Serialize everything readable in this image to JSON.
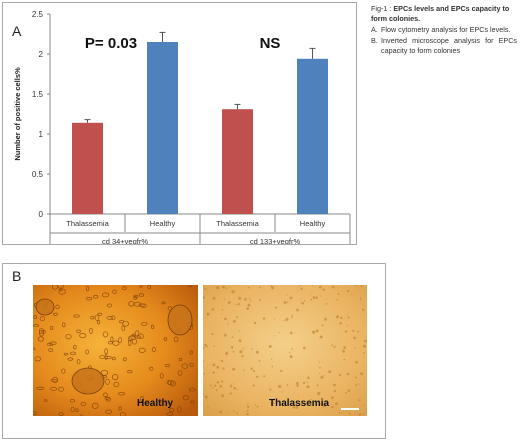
{
  "panel_a_letter": "A",
  "panel_b_letter": "B",
  "chart_data": {
    "type": "bar",
    "ylabel": "Number of positive cells%",
    "ylim": [
      0,
      2.5
    ],
    "yticks": [
      "0",
      "0.5",
      "1",
      "1.5",
      "2",
      "2.5"
    ],
    "ytick_values": [
      0,
      0.5,
      1,
      1.5,
      2,
      2.5
    ],
    "grid": false,
    "categories": [
      "Thalassemia",
      "Healthy",
      "Thalassemia",
      "Healthy"
    ],
    "groups": [
      "cd 34+vegfr%",
      "cd 133+vegfr%"
    ],
    "values": [
      1.14,
      2.15,
      1.31,
      1.94
    ],
    "errors": [
      0.04,
      0.12,
      0.06,
      0.13
    ],
    "colors": [
      "#c0504d",
      "#4f81bd",
      "#c0504d",
      "#4f81bd"
    ],
    "annotations": [
      "P= 0.03",
      "NS"
    ]
  },
  "caption": {
    "prefix": "Fig-1 : ",
    "title_bold": "EPCs levels and EPCs capacity to form colonies.",
    "items": [
      {
        "marker": "A.",
        "text": "Flow cytometry analysis for EPCs levels."
      },
      {
        "marker": "B.",
        "text": "Inverted microscope analysis for EPCs capacity to form colonies"
      }
    ]
  },
  "images": {
    "left_label": "Healthy",
    "right_label": "Thalassemia"
  }
}
